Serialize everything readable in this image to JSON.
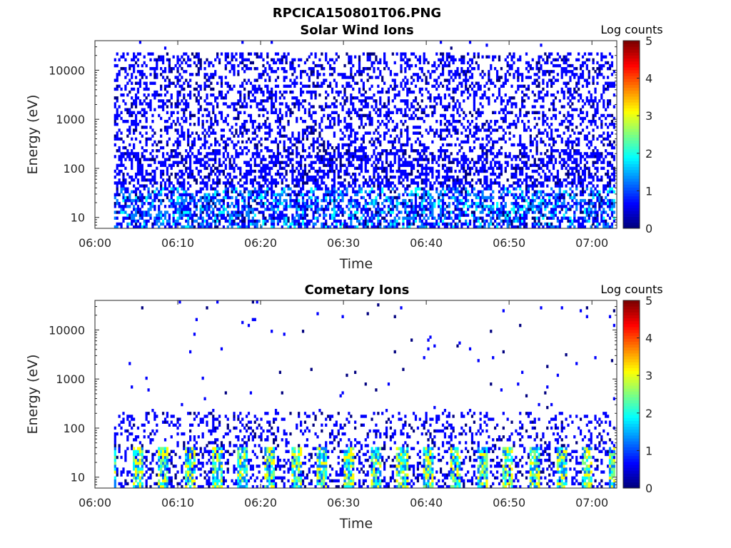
{
  "figure_title": "RPCICA150801T06.PNG",
  "colormap": [
    "#00007f",
    "#0000ff",
    "#007fff",
    "#00ffff",
    "#7fff7f",
    "#ffff00",
    "#ff7f00",
    "#ff0000",
    "#7f0000"
  ],
  "chart_data": [
    {
      "type": "heatmap",
      "title": "Solar Wind Ions",
      "xlabel": "Time",
      "ylabel": "Energy (eV)",
      "x_tick_labels": [
        "06:00",
        "06:10",
        "06:20",
        "06:30",
        "06:40",
        "06:50",
        "07:00"
      ],
      "y_tick_labels": [
        "10",
        "100",
        "1000",
        "10000"
      ],
      "y_scale": "log",
      "ylim": [
        6,
        40000
      ],
      "xlim_minutes": [
        0,
        63
      ],
      "data_time_range_minutes": [
        2.3,
        62.8
      ],
      "colorbar": {
        "label": "Log counts",
        "ticks": [
          "0",
          "1",
          "2",
          "3",
          "4",
          "5"
        ],
        "range": [
          0,
          5
        ]
      },
      "pattern": "dense sparse counts (mostly 0-1 log counts) from ~10 eV up to ~20000 eV, with lower-energy bands (10-30 eV) reaching 1-2 log counts"
    },
    {
      "type": "heatmap",
      "title": "Cometary Ions",
      "xlabel": "Time",
      "ylabel": "Energy (eV)",
      "x_tick_labels": [
        "06:00",
        "06:10",
        "06:20",
        "06:30",
        "06:40",
        "06:50",
        "07:00"
      ],
      "y_tick_labels": [
        "10",
        "100",
        "1000",
        "10000"
      ],
      "y_scale": "log",
      "ylim": [
        6,
        40000
      ],
      "xlim_minutes": [
        0,
        63
      ],
      "data_time_range_minutes": [
        2.3,
        62.8
      ],
      "colorbar": {
        "label": "Log counts",
        "ticks": [
          "0",
          "1",
          "2",
          "3",
          "4",
          "5"
        ],
        "range": [
          0,
          5
        ]
      },
      "pattern": "strong bursts of 1-3.5 log counts below ~40 eV roughly every 3 minutes, sparse counts up to ~200 eV, isolated scattered counts up to ~30000 eV"
    }
  ]
}
